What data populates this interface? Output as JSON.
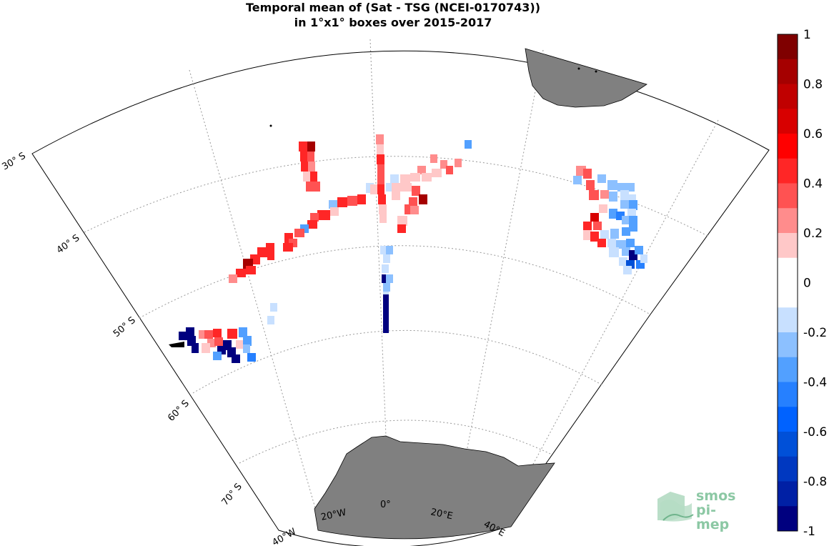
{
  "title": {
    "line1": "Temporal mean of (Sat - TSG (NCEI-0170743))",
    "line2": "in 1°x1° boxes over 2015-2017"
  },
  "map": {
    "projection": "polar stereographic sector",
    "land_color": "#808080",
    "lat_labels": [
      "30° S",
      "40° S",
      "50° S",
      "60° S",
      "70° S"
    ],
    "lon_labels": [
      "40°W",
      "20°W",
      "0°",
      "20°E",
      "40°E"
    ],
    "regions": [
      {
        "name": "south-africa",
        "value_note": "land"
      },
      {
        "name": "antarctica",
        "value_note": "land"
      }
    ]
  },
  "colorbar": {
    "min": -1,
    "max": 1,
    "tick_labels": [
      "1",
      "0.8",
      "0.6",
      "0.4",
      "0.2",
      "0",
      "-0.2",
      "-0.4",
      "-0.6",
      "-0.8",
      "-1"
    ],
    "colors": [
      "#7f0000",
      "#a50000",
      "#c00000",
      "#d80000",
      "#ff0000",
      "#ff2626",
      "#ff5252",
      "#ff8c8c",
      "#ffc8c8",
      "#ffffff",
      "#ffffff",
      "#c8e0ff",
      "#8cc0ff",
      "#52a0ff",
      "#2680ff",
      "#0062ff",
      "#0050d8",
      "#0038c0",
      "#0020a5",
      "#00007f"
    ]
  },
  "logo": {
    "line1": "smos",
    "line2": "pi-mep"
  }
}
